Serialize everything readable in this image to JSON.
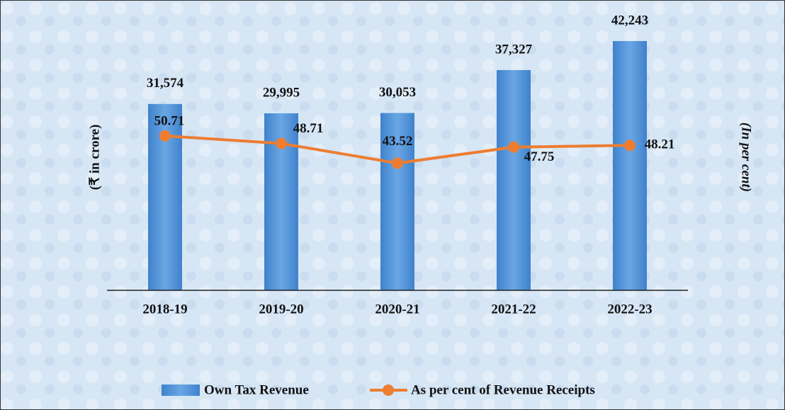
{
  "chart_data": {
    "type": "bar_line",
    "categories": [
      "2018-19",
      "2019-20",
      "2020-21",
      "2021-22",
      "2022-23"
    ],
    "series": [
      {
        "name": "Own Tax Revenue",
        "type": "bar",
        "color": "#4a8fd6",
        "values": [
          31574,
          29995,
          30053,
          37327,
          42243
        ],
        "value_labels": [
          "31,574",
          "29,995",
          "30,053",
          "37,327",
          "42,243"
        ]
      },
      {
        "name": "As per cent of Revenue Receipts",
        "type": "line",
        "axis": "y2",
        "color": "#ed7d31",
        "values": [
          50.71,
          48.71,
          43.52,
          47.75,
          48.21
        ]
      }
    ],
    "ylabel": "(₹ in crore)",
    "y2label": "(In per cent)",
    "ylim": [
      0,
      45000
    ],
    "y2lim": [
      10,
      80
    ],
    "legend": "bottom"
  }
}
